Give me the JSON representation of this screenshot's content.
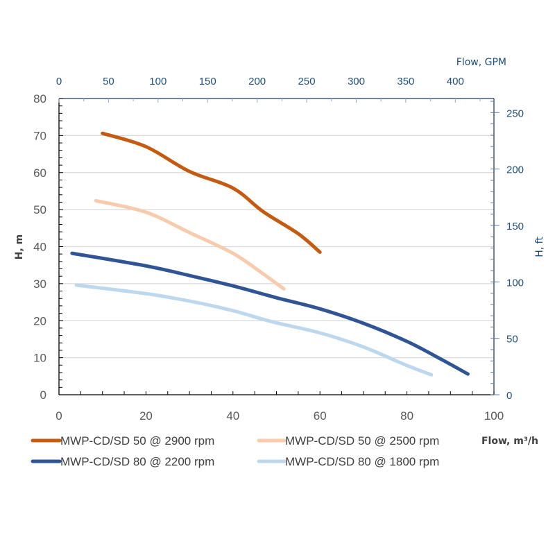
{
  "chart_data": {
    "type": "line",
    "title": "",
    "xlabel": "Flow,  m³/h",
    "ylabel": "H, m",
    "x2label": "Flow, GPM",
    "y2label": "H, ft",
    "xlim": [
      0,
      100
    ],
    "ylim": [
      0,
      80
    ],
    "x2lim": [
      0,
      439
    ],
    "y2lim": [
      0,
      262.5
    ],
    "xticks": [
      "0",
      "20",
      "40",
      "60",
      "80",
      "100"
    ],
    "yticks": [
      "0",
      "10",
      "20",
      "30",
      "40",
      "50",
      "60",
      "70",
      "80"
    ],
    "x2ticks": [
      "0",
      "50",
      "100",
      "150",
      "200",
      "250",
      "300",
      "350",
      "400"
    ],
    "y2ticks": [
      "0",
      "50",
      "100",
      "150",
      "200",
      "250"
    ],
    "grid": "horizontal",
    "legend": "bottom",
    "series": [
      {
        "name": "MWP-CD/SD 50 @  2900 rpm",
        "color": "#c55a11",
        "x": [
          10,
          20,
          30,
          40,
          47,
          55,
          60
        ],
        "y": [
          70.6,
          67.0,
          60.3,
          55.8,
          49.4,
          43.5,
          38.5
        ]
      },
      {
        "name": "MWP-CD/SD 50 @  2500 rpm",
        "color": "#f8cbad",
        "x": [
          8.5,
          20,
          30,
          40,
          47,
          51.7
        ],
        "y": [
          52.4,
          49.3,
          43.8,
          38.2,
          32.6,
          28.6
        ]
      },
      {
        "name": "MWP-CD/SD 80 @  2200 rpm",
        "color": "#2f5597",
        "x": [
          3,
          20,
          30,
          40,
          50,
          60,
          70,
          80,
          88,
          94
        ],
        "y": [
          38.2,
          34.8,
          32.2,
          29.4,
          26.2,
          23.2,
          19.3,
          14.4,
          9.5,
          5.6
        ]
      },
      {
        "name": "MWP-CD/SD 80 @ 1800 rpm",
        "color": "#bdd7ee",
        "x": [
          4,
          20,
          30,
          40,
          49,
          60,
          70,
          80,
          85.6
        ],
        "y": [
          29.6,
          27.3,
          25.3,
          22.7,
          19.7,
          16.7,
          12.9,
          7.9,
          5.4
        ]
      }
    ]
  }
}
